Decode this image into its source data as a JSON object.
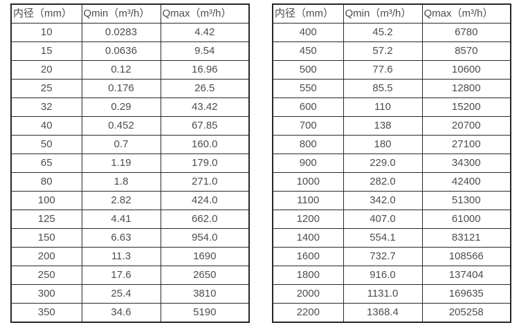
{
  "page": {
    "background": "#ffffff",
    "text_color": "#4d4d4d",
    "border_color": "#262626"
  },
  "tables": [
    {
      "headers": [
        "内径（mm）",
        "Qmin（m³/h）",
        "Qmax（m³/h）"
      ],
      "rows": [
        [
          "10",
          "0.0283",
          "4.42"
        ],
        [
          "15",
          "0.0636",
          "9.54"
        ],
        [
          "20",
          "0.12",
          "16.96"
        ],
        [
          "25",
          "0.176",
          "26.5"
        ],
        [
          "32",
          "0.29",
          "43.42"
        ],
        [
          "40",
          "0.452",
          "67.85"
        ],
        [
          "50",
          "0.7",
          "160.0"
        ],
        [
          "65",
          "1.19",
          "179.0"
        ],
        [
          "80",
          "1.8",
          "271.0"
        ],
        [
          "100",
          "2.82",
          "424.0"
        ],
        [
          "125",
          "4.41",
          "662.0"
        ],
        [
          "150",
          "6.63",
          "954.0"
        ],
        [
          "200",
          "11.3",
          "1690"
        ],
        [
          "250",
          "17.6",
          "2650"
        ],
        [
          "300",
          "25.4",
          "3810"
        ],
        [
          "350",
          "34.6",
          "5190"
        ]
      ]
    },
    {
      "headers": [
        "内径（mm）",
        "Qmin（m³/h）",
        "Qmax（m³/h）"
      ],
      "rows": [
        [
          "400",
          "45.2",
          "6780"
        ],
        [
          "450",
          "57.2",
          "8570"
        ],
        [
          "500",
          "77.6",
          "10600"
        ],
        [
          "550",
          "85.5",
          "12800"
        ],
        [
          "600",
          "110",
          "15200"
        ],
        [
          "700",
          "138",
          "20700"
        ],
        [
          "800",
          "180",
          "27100"
        ],
        [
          "900",
          "229.0",
          "34300"
        ],
        [
          "1000",
          "282.0",
          "42400"
        ],
        [
          "1100",
          "342.0",
          "51300"
        ],
        [
          "1200",
          "407.0",
          "61000"
        ],
        [
          "1400",
          "554.1",
          "83121"
        ],
        [
          "1600",
          "732.7",
          "108566"
        ],
        [
          "1800",
          "916.0",
          "137404"
        ],
        [
          "2000",
          "1131.0",
          "169635"
        ],
        [
          "2200",
          "1368.4",
          "205258"
        ]
      ]
    }
  ]
}
